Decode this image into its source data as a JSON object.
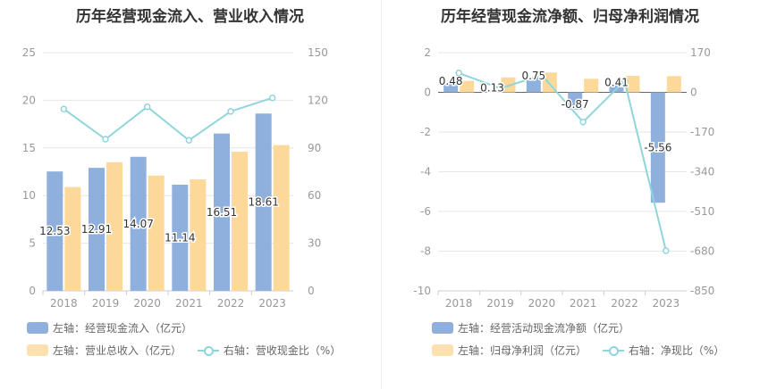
{
  "colors": {
    "bar1": "#8fafdc",
    "bar2": "#fdd89b",
    "line": "#8fd6dc",
    "grid": "#e6e6e6",
    "axis": "#999999"
  },
  "chart_data": [
    {
      "type": "bar",
      "title": "历年经营现金流入、营业收入情况",
      "categories": [
        "2018",
        "2019",
        "2020",
        "2021",
        "2022",
        "2023"
      ],
      "y_left": {
        "min": 0,
        "max": 25,
        "ticks": [
          "0",
          "5",
          "10",
          "15",
          "20",
          "25"
        ]
      },
      "y_right": {
        "min": 0,
        "max": 150,
        "ticks": [
          "0",
          "30",
          "60",
          "90",
          "120",
          "150"
        ]
      },
      "series": [
        {
          "name": "左轴：经营现金流入（亿元）",
          "type": "bar",
          "axis": "left",
          "values": [
            12.53,
            12.91,
            14.07,
            11.14,
            16.51,
            18.61
          ],
          "labels": [
            "12.53",
            "12.91",
            "14.07",
            "11.14",
            "16.51",
            "18.61"
          ]
        },
        {
          "name": "左轴：营业总收入（亿元）",
          "type": "bar",
          "axis": "left",
          "values": [
            10.9,
            13.5,
            12.1,
            11.7,
            14.6,
            15.3
          ]
        },
        {
          "name": "右轴：营收现金比（%）",
          "type": "line",
          "axis": "right",
          "values": [
            114.5,
            95.5,
            115.9,
            94.8,
            113.0,
            121.5
          ]
        }
      ]
    },
    {
      "type": "bar",
      "title": "历年经营现金流净额、归母净利润情况",
      "categories": [
        "2018",
        "2019",
        "2020",
        "2021",
        "2022",
        "2023"
      ],
      "y_left": {
        "min": -10,
        "max": 2,
        "ticks": [
          "-10",
          "-8",
          "-6",
          "-4",
          "-2",
          "0",
          "2"
        ]
      },
      "y_right": {
        "min": -850,
        "max": 170,
        "ticks": [
          "-850",
          "-680",
          "-510",
          "-340",
          "-170",
          "0",
          "170"
        ]
      },
      "series": [
        {
          "name": "左轴：经营活动现金流净额（亿元）",
          "type": "bar",
          "axis": "left",
          "values": [
            0.48,
            0.13,
            0.75,
            -0.87,
            0.41,
            -5.56
          ],
          "labels": [
            "0.48",
            "0.13",
            "0.75",
            "-0.87",
            "0.41",
            "-5.56"
          ]
        },
        {
          "name": "左轴：归母净利润（亿元）",
          "type": "bar",
          "axis": "left",
          "values": [
            0.58,
            0.75,
            1.0,
            0.68,
            0.83,
            0.82
          ]
        },
        {
          "name": "右轴：净现比（%）",
          "type": "line",
          "axis": "right",
          "values": [
            83,
            17,
            74,
            -127,
            49,
            -678
          ]
        }
      ]
    }
  ]
}
